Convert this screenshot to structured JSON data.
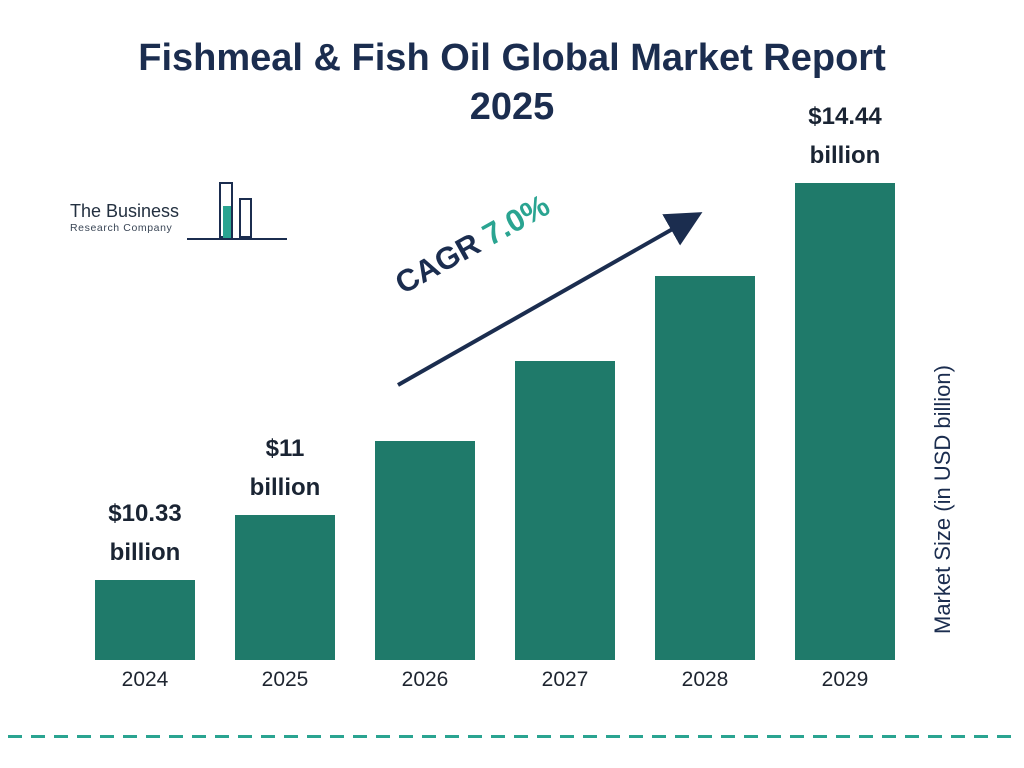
{
  "title": {
    "line1": "Fishmeal & Fish Oil Global Market Report",
    "line2": "2025"
  },
  "logo": {
    "name_line1": "The Business",
    "name_line2": "Research Company"
  },
  "cagr": {
    "prefix": "CAGR ",
    "value": "7.0%"
  },
  "ylabel": "Market Size (in USD billion)",
  "colors": {
    "bar": "#1f7a6a",
    "navy": "#1b2d4f",
    "teal": "#2aa491"
  },
  "chart_data": {
    "type": "bar",
    "title": "Fishmeal & Fish Oil Global Market Report 2025",
    "categories": [
      "2024",
      "2025",
      "2026",
      "2027",
      "2028",
      "2029"
    ],
    "values": [
      10.33,
      11.0,
      11.77,
      12.6,
      13.48,
      14.44
    ],
    "value_labels": [
      [
        "$10.33",
        "billion"
      ],
      [
        "$11",
        "billion"
      ],
      null,
      null,
      null,
      [
        "$14.44",
        "billion"
      ]
    ],
    "xlabel": "",
    "ylabel": "Market Size (in USD billion)",
    "ylim": [
      9.5,
      15.3
    ],
    "annotations": [
      "CAGR 7.0%"
    ],
    "grid": false,
    "legend": false
  }
}
